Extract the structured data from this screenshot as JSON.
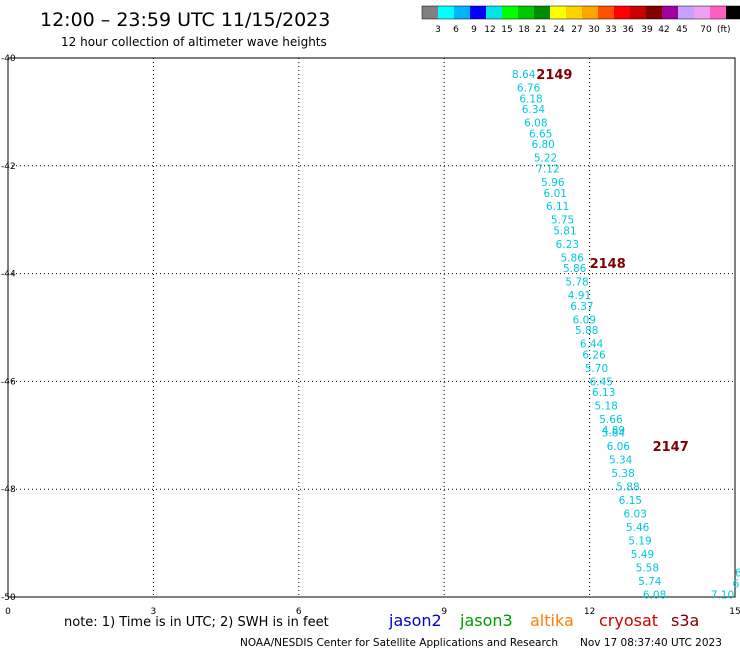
{
  "header": {
    "title": "12:00 – 23:59 UTC 11/15/2023",
    "subtitle": "12 hour collection of altimeter wave heights"
  },
  "color_scale": {
    "colors": [
      "#808080",
      "#00ffff",
      "#00b4ff",
      "#0000ff",
      "#00e6e6",
      "#00ff00",
      "#00c800",
      "#008c00",
      "#ffff00",
      "#ffd200",
      "#ffa500",
      "#ff5000",
      "#ff0000",
      "#c80000",
      "#800000",
      "#a000a0",
      "#c8a0ff",
      "#f0a0f0",
      "#ff60c0",
      "#000000"
    ],
    "labels": [
      "3",
      "6",
      "9",
      "12",
      "15",
      "18",
      "21",
      "24",
      "27",
      "30",
      "33",
      "36",
      "39",
      "42",
      "45",
      "70"
    ],
    "unit": "(ft)"
  },
  "footer": {
    "note": "note: 1) Time is in UTC; 2) SWH is in feet",
    "satellites": [
      {
        "name": "jason2",
        "color": "#0000cc"
      },
      {
        "name": "jason3",
        "color": "#009900"
      },
      {
        "name": "altika",
        "color": "#ff8000"
      },
      {
        "name": "cryosat",
        "color": "#cc0000"
      },
      {
        "name": "s3a",
        "color": "#800000"
      }
    ],
    "credit": "NOAA/NESDIS Center for Satellite Applications and Research",
    "timestamp": "Nov 17 08:37:40 UTC 2023"
  },
  "chart_data": {
    "type": "scatter",
    "xlabel": "",
    "ylabel": "",
    "xlim": [
      0,
      15
    ],
    "ylim": [
      -50,
      -40
    ],
    "x_ticks": [
      "0",
      "3",
      "6",
      "9",
      "12",
      "15"
    ],
    "y_ticks": [
      "-40",
      "-42",
      "-44",
      "-46",
      "-48",
      "-50"
    ],
    "grid": true,
    "point_color": "#00c8dc",
    "pass_color": "#800000",
    "passes": [
      {
        "label": "2149",
        "x": 10.9,
        "y": -40.3
      },
      {
        "label": "2148",
        "x": 12.0,
        "y": -43.8
      },
      {
        "label": "2147",
        "x": 13.3,
        "y": -47.2
      }
    ],
    "points": [
      {
        "x": 10.4,
        "y": -40.3,
        "v": "8.64"
      },
      {
        "x": 10.5,
        "y": -40.55,
        "v": "6.76"
      },
      {
        "x": 10.55,
        "y": -40.75,
        "v": "6.18"
      },
      {
        "x": 10.6,
        "y": -40.95,
        "v": "6.34"
      },
      {
        "x": 10.65,
        "y": -41.2,
        "v": "6.08"
      },
      {
        "x": 10.75,
        "y": -41.4,
        "v": "6.65"
      },
      {
        "x": 10.8,
        "y": -41.6,
        "v": "6.80"
      },
      {
        "x": 10.85,
        "y": -41.85,
        "v": "5.22"
      },
      {
        "x": 10.9,
        "y": -42.05,
        "v": "7.12"
      },
      {
        "x": 11.0,
        "y": -42.3,
        "v": "5.96"
      },
      {
        "x": 11.05,
        "y": -42.5,
        "v": "6.01"
      },
      {
        "x": 11.1,
        "y": -42.75,
        "v": "6.11"
      },
      {
        "x": 11.2,
        "y": -43.0,
        "v": "5.75"
      },
      {
        "x": 11.25,
        "y": -43.2,
        "v": "5.81"
      },
      {
        "x": 11.3,
        "y": -43.45,
        "v": "6.23"
      },
      {
        "x": 11.4,
        "y": -43.7,
        "v": "5.86"
      },
      {
        "x": 11.45,
        "y": -43.9,
        "v": "5.86"
      },
      {
        "x": 11.5,
        "y": -44.15,
        "v": "5.78"
      },
      {
        "x": 11.55,
        "y": -44.4,
        "v": "4.91"
      },
      {
        "x": 11.6,
        "y": -44.6,
        "v": "6.37"
      },
      {
        "x": 11.65,
        "y": -44.85,
        "v": "6.09"
      },
      {
        "x": 11.7,
        "y": -45.05,
        "v": "5.88"
      },
      {
        "x": 11.8,
        "y": -45.3,
        "v": "6.44"
      },
      {
        "x": 11.85,
        "y": -45.5,
        "v": "6.26"
      },
      {
        "x": 11.9,
        "y": -45.75,
        "v": "5.70"
      },
      {
        "x": 12.0,
        "y": -46.0,
        "v": "6.45"
      },
      {
        "x": 12.05,
        "y": -46.2,
        "v": "6.13"
      },
      {
        "x": 12.1,
        "y": -46.45,
        "v": "5.18"
      },
      {
        "x": 12.2,
        "y": -46.7,
        "v": "5.66"
      },
      {
        "x": 12.25,
        "y": -46.9,
        "v": "4.89"
      },
      {
        "x": 12.25,
        "y": -46.95,
        "v": "5.84"
      },
      {
        "x": 12.35,
        "y": -47.2,
        "v": "6.06"
      },
      {
        "x": 12.4,
        "y": -47.45,
        "v": "5.34"
      },
      {
        "x": 12.45,
        "y": -47.7,
        "v": "5.38"
      },
      {
        "x": 12.55,
        "y": -47.95,
        "v": "5.88"
      },
      {
        "x": 12.6,
        "y": -48.2,
        "v": "6.15"
      },
      {
        "x": 12.7,
        "y": -48.45,
        "v": "6.03"
      },
      {
        "x": 12.75,
        "y": -48.7,
        "v": "5.46"
      },
      {
        "x": 12.8,
        "y": -48.95,
        "v": "5.19"
      },
      {
        "x": 12.85,
        "y": -49.2,
        "v": "5.49"
      },
      {
        "x": 12.95,
        "y": -49.45,
        "v": "5.58"
      },
      {
        "x": 13.0,
        "y": -49.7,
        "v": "5.74"
      },
      {
        "x": 13.1,
        "y": -49.95,
        "v": "6.08"
      },
      {
        "x": 14.5,
        "y": -49.95,
        "v": "7.10"
      },
      {
        "x": 14.95,
        "y": -49.75,
        "v": "6.0"
      },
      {
        "x": 15.0,
        "y": -49.55,
        "v": "6"
      }
    ]
  }
}
